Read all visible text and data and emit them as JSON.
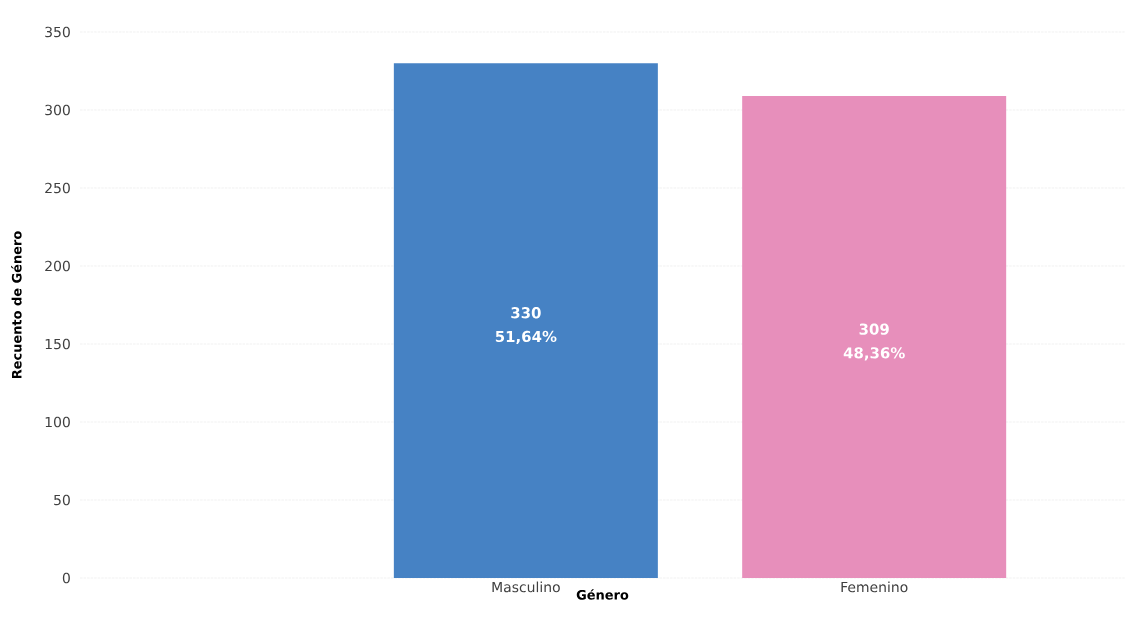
{
  "chart_data": {
    "type": "bar",
    "xlabel": "Género",
    "ylabel": "Recuento de Género",
    "categories": [
      "Masculino",
      "Femenino"
    ],
    "values": [
      330,
      309
    ],
    "colors": [
      "#4682c4",
      "#e78fbb"
    ],
    "value_labels": [
      "330",
      "309"
    ],
    "annotations": [
      "51,64%",
      "48,36%"
    ],
    "ylim": [
      0,
      350
    ],
    "yticks": [
      0,
      50,
      100,
      150,
      200,
      250,
      300,
      350
    ],
    "grid": "y"
  }
}
